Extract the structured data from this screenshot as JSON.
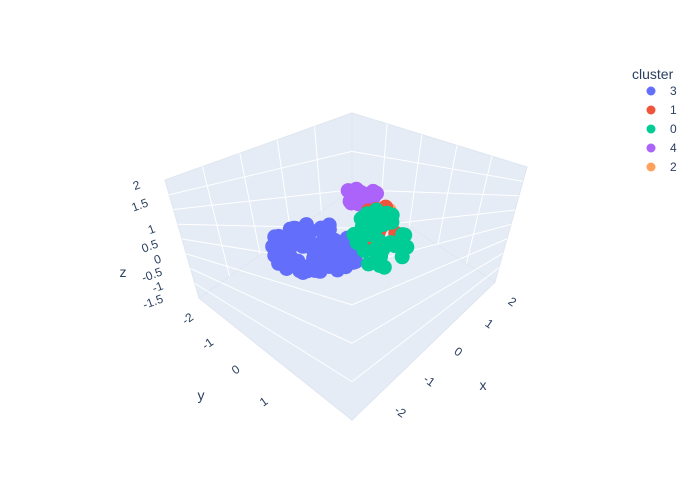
{
  "chart_data": {
    "type": "scatter3d",
    "axes": {
      "x": {
        "label": "x",
        "ticks": [
          "-2",
          "-1",
          "0",
          "1",
          "2"
        ]
      },
      "y": {
        "label": "y",
        "ticks": [
          "-2",
          "-1",
          "0",
          "1"
        ]
      },
      "z": {
        "label": "z",
        "ticks": [
          "-1.5",
          "-1",
          "-0.5",
          "0",
          "0.5",
          "1",
          "1.5",
          "2"
        ]
      }
    },
    "legend": {
      "title": "cluster",
      "position": "top-right",
      "entries": [
        {
          "name": "3",
          "color": "#636efa"
        },
        {
          "name": "1",
          "color": "#ef553b"
        },
        {
          "name": "0",
          "color": "#00cc96"
        },
        {
          "name": "4",
          "color": "#ab63fa"
        },
        {
          "name": "2",
          "color": "#ffa15a"
        }
      ]
    },
    "series": [
      {
        "name": "3",
        "color": "#636efa"
      },
      {
        "name": "1",
        "color": "#ef553b"
      },
      {
        "name": "0",
        "color": "#00cc96"
      },
      {
        "name": "4",
        "color": "#ab63fa"
      },
      {
        "name": "2",
        "color": "#ffa15a"
      }
    ],
    "background_color": "#e5ecf6",
    "gridline_color": "#ffffff",
    "grid": true
  }
}
